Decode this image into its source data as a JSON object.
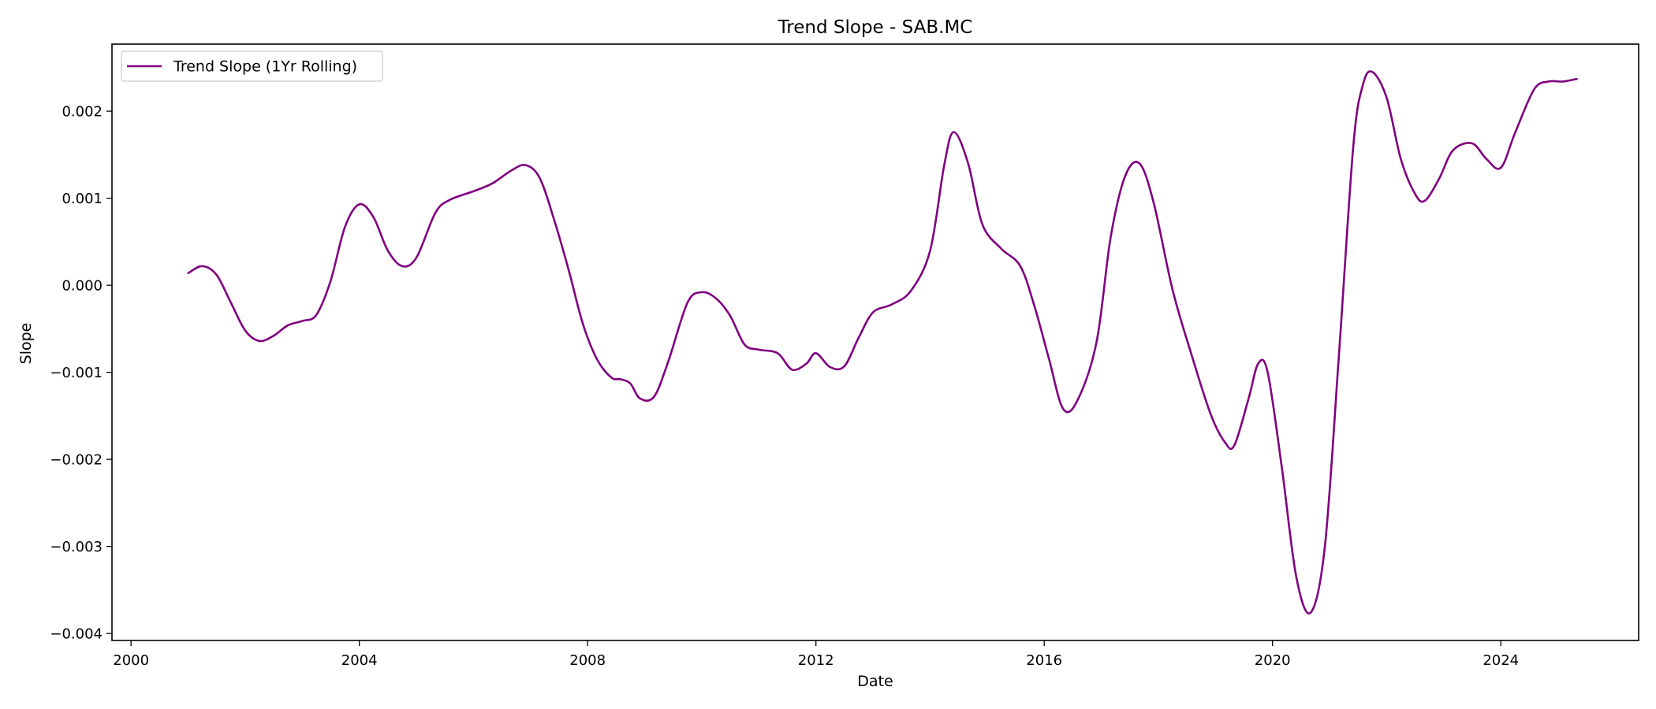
{
  "chart_data": {
    "type": "line",
    "title": "Trend Slope - SAB.MC",
    "xlabel": "Date",
    "ylabel": "Slope",
    "xlim": [
      "1999-09-01",
      "2026-06-01"
    ],
    "ylim": [
      -0.00408,
      0.00277
    ],
    "xticks": [
      {
        "value": "2000-01-01",
        "label": "2000"
      },
      {
        "value": "2004-01-01",
        "label": "2004"
      },
      {
        "value": "2008-01-01",
        "label": "2008"
      },
      {
        "value": "2012-01-01",
        "label": "2012"
      },
      {
        "value": "2016-01-01",
        "label": "2016"
      },
      {
        "value": "2020-01-01",
        "label": "2020"
      },
      {
        "value": "2024-01-01",
        "label": "2024"
      }
    ],
    "yticks": [
      {
        "value": -0.004,
        "label": "−0.004"
      },
      {
        "value": -0.003,
        "label": "−0.003"
      },
      {
        "value": -0.002,
        "label": "−0.002"
      },
      {
        "value": -0.001,
        "label": "−0.001"
      },
      {
        "value": 0.0,
        "label": "0.000"
      },
      {
        "value": 0.001,
        "label": "0.001"
      },
      {
        "value": 0.002,
        "label": "0.002"
      }
    ],
    "grid": false,
    "legend_position": "top-left",
    "series": [
      {
        "name": "Trend Slope (1Yr Rolling)",
        "color": "#800080",
        "points": [
          [
            "2001-01-01",
            0.00014
          ],
          [
            "2001-04-01",
            0.00022
          ],
          [
            "2001-07-01",
            0.00012
          ],
          [
            "2001-10-01",
            -0.0002
          ],
          [
            "2002-01-01",
            -0.00052
          ],
          [
            "2002-04-01",
            -0.00064
          ],
          [
            "2002-07-01",
            -0.00058
          ],
          [
            "2002-10-01",
            -0.00046
          ],
          [
            "2003-01-01",
            -0.00041
          ],
          [
            "2003-04-01",
            -0.00034
          ],
          [
            "2003-07-01",
            5e-05
          ],
          [
            "2003-10-01",
            0.00067
          ],
          [
            "2004-01-01",
            0.00093
          ],
          [
            "2004-04-01",
            0.00078
          ],
          [
            "2004-07-01",
            0.0004
          ],
          [
            "2004-10-01",
            0.00022
          ],
          [
            "2005-01-01",
            0.00032
          ],
          [
            "2005-05-01",
            0.00083
          ],
          [
            "2005-08-01",
            0.00098
          ],
          [
            "2006-01-01",
            0.00108
          ],
          [
            "2006-05-01",
            0.00117
          ],
          [
            "2006-09-01",
            0.00132
          ],
          [
            "2006-12-01",
            0.00138
          ],
          [
            "2007-03-01",
            0.00123
          ],
          [
            "2007-06-01",
            0.00075
          ],
          [
            "2007-09-01",
            0.00018
          ],
          [
            "2007-12-01",
            -0.00044
          ],
          [
            "2008-03-01",
            -0.00085
          ],
          [
            "2008-06-01",
            -0.00106
          ],
          [
            "2008-08-01",
            -0.00108
          ],
          [
            "2008-10-01",
            -0.00113
          ],
          [
            "2008-12-01",
            -0.0013
          ],
          [
            "2009-03-01",
            -0.00128
          ],
          [
            "2009-06-01",
            -0.00087
          ],
          [
            "2009-10-01",
            -0.0002
          ],
          [
            "2010-01-01",
            -8e-05
          ],
          [
            "2010-04-01",
            -0.00015
          ],
          [
            "2010-07-01",
            -0.00035
          ],
          [
            "2010-10-01",
            -0.00068
          ],
          [
            "2011-01-01",
            -0.00074
          ],
          [
            "2011-05-01",
            -0.00078
          ],
          [
            "2011-08-01",
            -0.00097
          ],
          [
            "2011-11-01",
            -0.0009
          ],
          [
            "2012-01-01",
            -0.00078
          ],
          [
            "2012-04-01",
            -0.00094
          ],
          [
            "2012-07-01",
            -0.00093
          ],
          [
            "2012-10-01",
            -0.0006
          ],
          [
            "2013-01-01",
            -0.00031
          ],
          [
            "2013-05-01",
            -0.00022
          ],
          [
            "2013-09-01",
            -6e-05
          ],
          [
            "2014-01-01",
            0.0004
          ],
          [
            "2014-04-01",
            0.00138
          ],
          [
            "2014-06-01",
            0.00176
          ],
          [
            "2014-09-01",
            0.0014
          ],
          [
            "2014-12-01",
            0.0007
          ],
          [
            "2015-04-01",
            0.00042
          ],
          [
            "2015-08-01",
            0.00022
          ],
          [
            "2015-11-01",
            -0.00025
          ],
          [
            "2016-02-01",
            -0.00085
          ],
          [
            "2016-05-01",
            -0.00142
          ],
          [
            "2016-08-01",
            -0.00132
          ],
          [
            "2016-12-01",
            -0.00065
          ],
          [
            "2017-03-01",
            0.00055
          ],
          [
            "2017-06-01",
            0.00125
          ],
          [
            "2017-09-01",
            0.0014
          ],
          [
            "2017-12-01",
            0.00095
          ],
          [
            "2018-04-01",
            -5e-05
          ],
          [
            "2018-08-01",
            -0.0008
          ],
          [
            "2018-12-01",
            -0.00148
          ],
          [
            "2019-03-01",
            -0.0018
          ],
          [
            "2019-05-01",
            -0.00184
          ],
          [
            "2019-08-01",
            -0.0013
          ],
          [
            "2019-10-01",
            -0.0009
          ],
          [
            "2019-12-01",
            -0.001
          ],
          [
            "2020-03-01",
            -0.0021
          ],
          [
            "2020-06-01",
            -0.00335
          ],
          [
            "2020-09-01",
            -0.00376
          ],
          [
            "2020-12-01",
            -0.003
          ],
          [
            "2021-03-01",
            -0.0008
          ],
          [
            "2021-06-01",
            0.0016
          ],
          [
            "2021-08-01",
            0.0023
          ],
          [
            "2021-10-01",
            0.00245
          ],
          [
            "2022-01-01",
            0.00215
          ],
          [
            "2022-04-01",
            0.00145
          ],
          [
            "2022-07-01",
            0.00105
          ],
          [
            "2022-09-01",
            0.00097
          ],
          [
            "2022-12-01",
            0.00122
          ],
          [
            "2023-03-01",
            0.00155
          ],
          [
            "2023-07-01",
            0.00163
          ],
          [
            "2023-10-01",
            0.00145
          ],
          [
            "2024-01-01",
            0.00135
          ],
          [
            "2024-04-01",
            0.00175
          ],
          [
            "2024-08-01",
            0.00225
          ],
          [
            "2024-11-01",
            0.00234
          ],
          [
            "2025-02-01",
            0.00234
          ],
          [
            "2025-05-01",
            0.00237
          ]
        ]
      }
    ]
  }
}
